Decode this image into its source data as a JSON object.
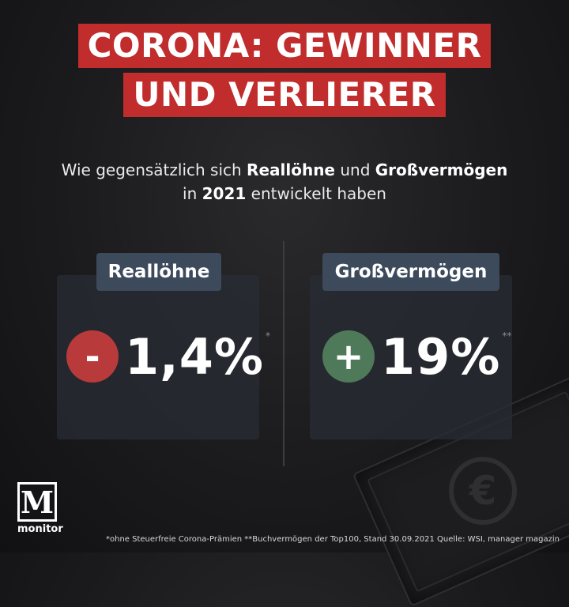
{
  "title": {
    "line1": "CORONA: GEWINNER",
    "line2": "UND VERLIERER"
  },
  "subtitle": {
    "part1": "Wie gegensätzlich sich ",
    "bold1": "Reallöhne",
    "part2": " und ",
    "bold2": "Großvermögen",
    "part3": "in ",
    "bold3": "2021",
    "part4": " entwickelt haben"
  },
  "cards": [
    {
      "label": "Reallöhne",
      "sign": "-",
      "value": "1,4%",
      "mark": "*",
      "sign_color": "#b83a3a"
    },
    {
      "label": "Großvermögen",
      "sign": "+",
      "value": "19%",
      "mark": "**",
      "sign_color": "#4e7a5a"
    }
  ],
  "logo": {
    "letter": "M",
    "text": "monitor"
  },
  "footnote": "*ohne Steuerfreie Corona-Prämien **Buchvermögen der Top100, Stand 30.09.2021 Quelle: WSI, manager magazin",
  "decor": {
    "currency_symbol": "€",
    "icons": [
      "banknote-icon",
      "euro-icon"
    ]
  },
  "colors": {
    "title_bg": "#c12c2c",
    "label_bg": "#3c4a5c"
  }
}
